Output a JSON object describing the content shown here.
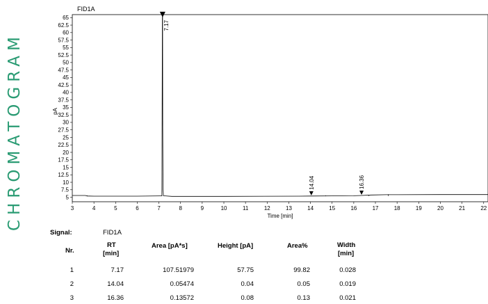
{
  "side_title": "CHROMATOGRAM",
  "chart_data": {
    "type": "line",
    "title": "FID1A",
    "xlabel": "Time [min]",
    "ylabel": "pA",
    "xlim": [
      3,
      22.2
    ],
    "ylim": [
      3.5,
      66
    ],
    "x_ticks": [
      3,
      4,
      5,
      6,
      7,
      8,
      9,
      10,
      11,
      12,
      13,
      14,
      15,
      16,
      17,
      18,
      19,
      20,
      21,
      22
    ],
    "y_ticks": [
      5,
      7.5,
      10,
      12.5,
      15,
      17.5,
      20,
      22.5,
      25,
      27.5,
      30,
      32.5,
      35,
      37.5,
      40,
      42.5,
      45,
      47.5,
      50,
      52.5,
      55,
      57.5,
      60,
      62.5,
      65
    ],
    "grid": false,
    "baseline": [
      [
        3,
        5.6
      ],
      [
        3.6,
        5.6
      ],
      [
        3.7,
        5.4
      ],
      [
        4,
        5.35
      ],
      [
        6,
        5.35
      ],
      [
        7.05,
        5.45
      ],
      [
        7.18,
        6.0
      ],
      [
        7.3,
        5.45
      ],
      [
        7.6,
        5.3
      ],
      [
        10,
        5.3
      ],
      [
        13.5,
        5.35
      ],
      [
        14.04,
        5.4
      ],
      [
        15,
        5.45
      ],
      [
        16,
        5.5
      ],
      [
        16.36,
        5.6
      ],
      [
        16.8,
        5.75
      ],
      [
        17.5,
        5.85
      ],
      [
        18,
        5.85
      ],
      [
        20,
        5.9
      ],
      [
        22.2,
        5.9
      ]
    ],
    "peaks": [
      {
        "rt": 7.17,
        "label": "7.17",
        "height": 65.8
      },
      {
        "rt": 14.04,
        "label": "14.04",
        "height": 5.4
      },
      {
        "rt": 16.36,
        "label": "16.36",
        "height": 5.6
      }
    ]
  },
  "results": {
    "signal_label": "Signal:",
    "signal_value": "FID1A",
    "headers": {
      "nr": "Nr.",
      "rt": "RT",
      "rt_unit": "[min]",
      "area": "Area [pA*s]",
      "height": "Height [pA]",
      "area_pct": "Area%",
      "width": "Width",
      "width_unit": "[min]"
    },
    "rows": [
      {
        "nr": "1",
        "rt": "7.17",
        "area": "107.51979",
        "height": "57.75",
        "area_pct": "99.82",
        "width": "0.028"
      },
      {
        "nr": "2",
        "rt": "14.04",
        "area": "0.05474",
        "height": "0.04",
        "area_pct": "0.05",
        "width": "0.019"
      },
      {
        "nr": "3",
        "rt": "16.36",
        "area": "0.13572",
        "height": "0.08",
        "area_pct": "0.13",
        "width": "0.021"
      }
    ]
  }
}
